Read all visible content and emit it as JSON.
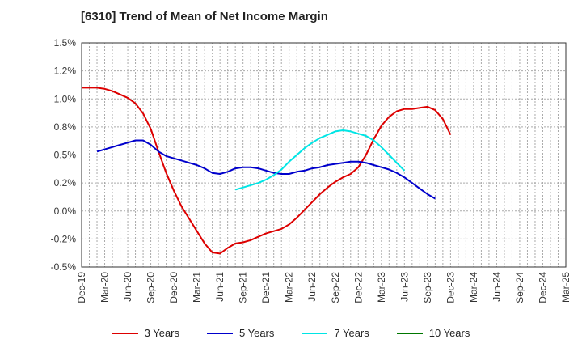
{
  "header": {
    "title": "[6310]  Trend of Mean of Net Income Margin"
  },
  "colors": {
    "3 Years": "#dd0000",
    "5 Years": "#0000cc",
    "7 Years": "#00e5e5",
    "10 Years": "#007700",
    "grid": "#aaaaaa",
    "axis": "#333333"
  },
  "chart_data": {
    "type": "line",
    "title": "[6310]  Trend of Mean of Net Income Margin",
    "xlabel": "",
    "ylabel": "",
    "x_ticks": [
      "Dec-19",
      "Mar-20",
      "Jun-20",
      "Sep-20",
      "Dec-20",
      "Mar-21",
      "Jun-21",
      "Sep-21",
      "Dec-21",
      "Mar-22",
      "Jun-22",
      "Sep-22",
      "Dec-22",
      "Mar-23",
      "Jun-23",
      "Sep-23",
      "Dec-23",
      "Mar-24",
      "Jun-24",
      "Sep-24",
      "Dec-24",
      "Mar-25"
    ],
    "y_ticks": [
      "1.5%",
      "1.2%",
      "1.0%",
      "0.8%",
      "0.5%",
      "0.2%",
      "0.0%",
      "-0.2%",
      "-0.5%"
    ],
    "y_tick_values": [
      1.5,
      1.25,
      1.0,
      0.75,
      0.5,
      0.25,
      0.0,
      -0.25,
      -0.5
    ],
    "ylim": [
      -0.5,
      1.5
    ],
    "grid": true,
    "legend_position": "bottom",
    "series": [
      {
        "name": "3 Years",
        "start_index": 0,
        "values": [
          1.1,
          1.1,
          1.1,
          1.09,
          1.07,
          1.04,
          1.01,
          0.96,
          0.87,
          0.73,
          0.53,
          0.34,
          0.18,
          0.04,
          -0.07,
          -0.18,
          -0.29,
          -0.37,
          -0.38,
          -0.33,
          -0.29,
          -0.28,
          -0.26,
          -0.23,
          -0.2,
          -0.18,
          -0.16,
          -0.12,
          -0.06,
          0.01,
          0.08,
          0.15,
          0.21,
          0.26,
          0.3,
          0.33,
          0.39,
          0.5,
          0.64,
          0.76,
          0.84,
          0.89,
          0.91,
          0.91,
          0.92,
          0.93,
          0.9,
          0.82,
          0.68
        ]
      },
      {
        "name": "5 Years",
        "start_index": 2,
        "values": [
          0.53,
          0.55,
          0.57,
          0.59,
          0.61,
          0.63,
          0.63,
          0.59,
          0.53,
          0.49,
          0.47,
          0.45,
          0.43,
          0.41,
          0.38,
          0.34,
          0.33,
          0.35,
          0.38,
          0.39,
          0.39,
          0.38,
          0.36,
          0.34,
          0.33,
          0.33,
          0.35,
          0.36,
          0.38,
          0.39,
          0.41,
          0.42,
          0.43,
          0.44,
          0.44,
          0.43,
          0.41,
          0.39,
          0.37,
          0.34,
          0.3,
          0.25,
          0.2,
          0.15,
          0.11
        ]
      },
      {
        "name": "7 Years",
        "start_index": 20,
        "values": [
          0.19,
          0.21,
          0.23,
          0.25,
          0.28,
          0.32,
          0.37,
          0.44,
          0.5,
          0.56,
          0.61,
          0.65,
          0.68,
          0.71,
          0.72,
          0.71,
          0.69,
          0.67,
          0.63,
          0.57,
          0.5,
          0.43,
          0.36
        ]
      },
      {
        "name": "10 Years",
        "start_index": 0,
        "values": []
      }
    ]
  }
}
